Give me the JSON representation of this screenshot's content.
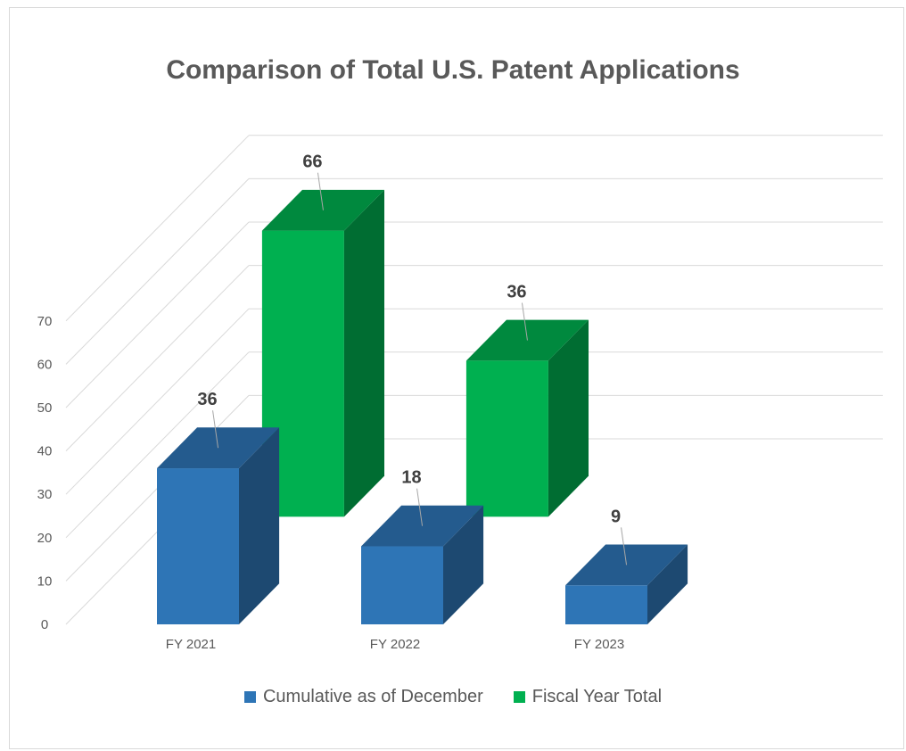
{
  "chart_data": {
    "type": "bar",
    "title": "Comparison of Total U.S. Patent Applications",
    "categories": [
      "FY 2021",
      "FY 2022",
      "FY 2023"
    ],
    "series": [
      {
        "name": "Cumulative as of December",
        "values": [
          36,
          18,
          9
        ],
        "color": "#2e75b6"
      },
      {
        "name": "Fiscal Year Total",
        "values": [
          66,
          36,
          null
        ],
        "color": "#00b050"
      }
    ],
    "y_ticks": [
      0,
      10,
      20,
      30,
      40,
      50,
      60,
      70
    ],
    "ylim": [
      0,
      70
    ],
    "grid": true,
    "legend_position": "bottom",
    "style": "3d-clustered-column"
  }
}
